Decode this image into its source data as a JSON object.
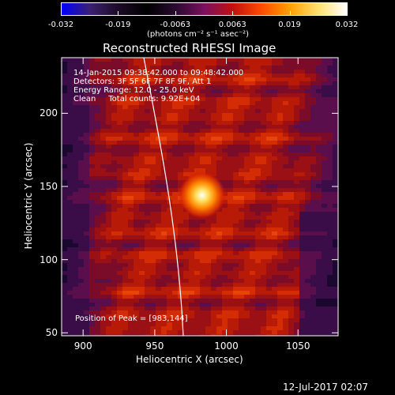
{
  "colorbar": {
    "ticks": [
      "-0.032",
      "-0.019",
      "-0.0063",
      "0.0063",
      "0.019",
      "0.032"
    ],
    "units_text": "(photons cm⁻² s⁻¹ asec⁻²)",
    "stops": [
      "#0000ff",
      "#3a2070",
      "#1c0a26",
      "#000000",
      "#2a0a30",
      "#7a1060",
      "#c01010",
      "#ff4a00",
      "#ffa000",
      "#ffe070",
      "#ffffff"
    ]
  },
  "chart_data": {
    "type": "heatmap",
    "title": "Reconstructed RHESSI Image",
    "xlabel": "Heliocentric X (arcsec)",
    "ylabel": "Heliocentric Y (arcsec)",
    "xlim": [
      885,
      1078
    ],
    "ylim": [
      48,
      238
    ],
    "xticks": [
      900,
      950,
      1000,
      1050
    ],
    "yticks": [
      50,
      100,
      150,
      200
    ],
    "peak": {
      "x": 983,
      "y": 144
    },
    "info_lines": [
      "14-Jan-2015 09:38:42.000 to 09:48:42.000",
      "Detectors: 3F 5F 6F 7F 8F 9F, Att 1",
      "Energy Range: 12.0 - 25.0 keV",
      "Clean     Total counts: 9.92E+04"
    ],
    "peak_annotation": "Position of Peak = [983,144]",
    "limb_color": "#ffffff"
  },
  "timestamp": "12-Jul-2017 02:07"
}
